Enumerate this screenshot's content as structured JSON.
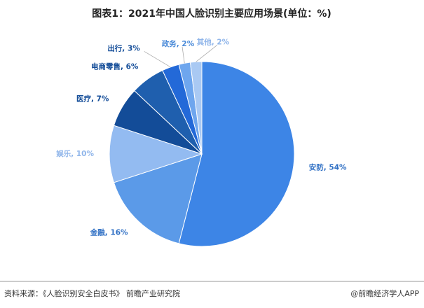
{
  "chart_data": {
    "type": "pie",
    "title": "图表1：2021年中国人脸识别主要应用场景(单位：%)",
    "values": [
      54,
      16,
      10,
      7,
      6,
      3,
      2,
      2
    ],
    "value_labels": [
      "安防, 54%",
      "金融, 16%",
      "娱乐, 10%",
      "医疗, 7%",
      "电商零售, 6%",
      "出行, 3%",
      "政务, 2%",
      "其他, 2%"
    ],
    "colors": [
      "#3d85e6",
      "#5b9ae8",
      "#93bbf1",
      "#134c98",
      "#1f5fae",
      "#2369d8",
      "#6ea6ee",
      "#a9c9f3"
    ],
    "label_colors": [
      "#2f6fc4",
      "#2f6fc4",
      "#8fb5ea",
      "#134c98",
      "#134c98",
      "#134c98",
      "#4a8ad8",
      "#8fb5ea"
    ],
    "source": "资料来源：《人脸识别安全白皮书》 前瞻产业研究院",
    "credit": "@前瞻经济学人APP"
  }
}
